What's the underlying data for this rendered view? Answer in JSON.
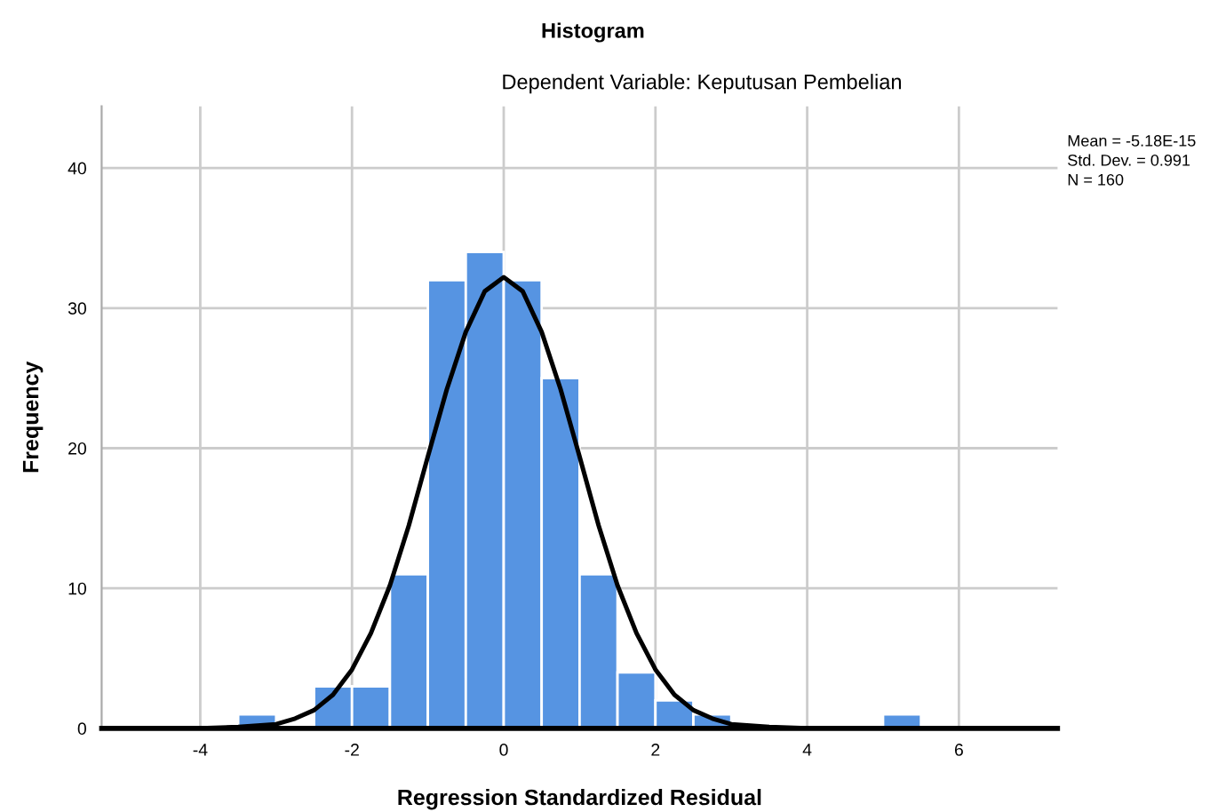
{
  "chart_data": {
    "type": "histogram",
    "title": "Histogram",
    "subtitle": "Dependent Variable: Keputusan Pembelian",
    "xlabel": "Regression Standardized Residual",
    "ylabel": "Frequency",
    "bins": [
      -3.5,
      -3.0,
      -2.5,
      -2.0,
      -1.5,
      -1.0,
      -0.5,
      0.0,
      0.5,
      1.0,
      1.5,
      2.0,
      2.5,
      3.0,
      3.5,
      4.0,
      4.5,
      5.0,
      5.5
    ],
    "values": [
      1,
      0,
      3,
      3,
      11,
      32,
      34,
      32,
      25,
      11,
      4,
      2,
      1,
      0,
      0,
      0,
      0,
      1
    ],
    "color": "#5694e2",
    "series": [
      {
        "type": "line",
        "color": "#000000",
        "x": [
          -5.3,
          -4.0,
          -3.5,
          -3.0,
          -2.75,
          -2.5,
          -2.25,
          -2.0,
          -1.75,
          -1.5,
          -1.25,
          -1.0,
          -0.75,
          -0.5,
          -0.25,
          0.0,
          0.25,
          0.5,
          0.75,
          1.0,
          1.25,
          1.5,
          1.75,
          2.0,
          2.25,
          2.5,
          2.75,
          3.0,
          3.5,
          4.0,
          5.0,
          7.3
        ],
        "values": [
          0,
          0,
          0.1,
          0.3,
          0.7,
          1.3,
          2.4,
          4.2,
          6.8,
          10.2,
          14.5,
          19.4,
          24.2,
          28.3,
          31.2,
          32.2,
          31.2,
          28.3,
          24.2,
          19.4,
          14.5,
          10.2,
          6.8,
          4.2,
          2.4,
          1.3,
          0.7,
          0.3,
          0.1,
          0,
          0,
          0
        ]
      }
    ],
    "xlim": [
      -5.3,
      7.3
    ],
    "xticks": [
      -4,
      -2,
      0,
      2,
      4,
      6
    ],
    "ylim": [
      0,
      44.4
    ],
    "yticks": [
      0,
      10,
      20,
      30,
      40
    ],
    "grid": true,
    "annotations": [
      "Mean = -5.18E-15",
      "Std. Dev. = 0.991",
      "N = 160"
    ]
  }
}
